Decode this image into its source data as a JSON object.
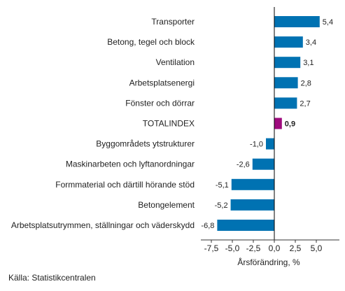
{
  "chart_data": {
    "type": "bar",
    "orientation": "horizontal",
    "categories": [
      "Transporter",
      "Betong, tegel och block",
      "Ventilation",
      "Arbetsplatsenergi",
      "Fönster och dörrar",
      "TOTALINDEX",
      "Byggområdets ytstrukturer",
      "Maskinarbeten och lyftanordningar",
      "Formmaterial och därtill hörande stöd",
      "Betongelement",
      "Arbetsplatsutrymmen, ställningar och väderskydd"
    ],
    "values": [
      5.4,
      3.4,
      3.1,
      2.8,
      2.7,
      0.9,
      -1.0,
      -2.6,
      -5.1,
      -5.2,
      -6.8
    ],
    "value_labels": [
      "5,4",
      "3,4",
      "3,1",
      "2,8",
      "2,7",
      "0,9",
      "-1,0",
      "-2,6",
      "-5,1",
      "-5,2",
      "-6,8"
    ],
    "highlight_category": "TOTALINDEX",
    "colors": {
      "bar": "#0072b2",
      "highlight": "#9e0a7d",
      "axis": "#000000"
    },
    "xlim": [
      -8.75,
      7.75
    ],
    "xticks": [
      -7.5,
      -5.0,
      -2.5,
      0.0,
      2.5,
      5.0
    ],
    "xtick_labels": [
      "-7,5",
      "-5,0",
      "-2,5",
      "0,0",
      "2,5",
      "5,0"
    ],
    "xlabel": "Årsförändring, %",
    "grid": false
  },
  "source": "Källa: Statistikcentralen"
}
